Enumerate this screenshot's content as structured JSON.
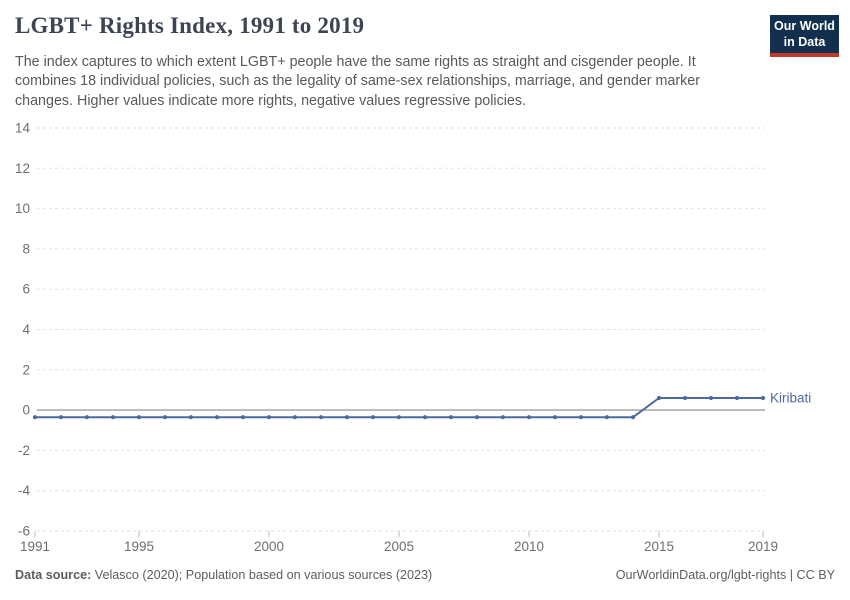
{
  "header": {
    "title": "LGBT+ Rights Index, 1991 to 2019",
    "subtitle": "The index captures to which extent LGBT+ people have the same rights as straight and cisgender people. It combines 18 individual policies, such as the legality of same-sex relationships, marriage, and gender marker changes. Higher values indicate more rights, negative values regressive policies.",
    "logo": {
      "line1": "Our World",
      "line2": "in Data",
      "bg_color": "#12304e",
      "accent_color": "#c0392b"
    }
  },
  "chart_data": {
    "type": "line",
    "title": "LGBT+ Rights Index, 1991 to 2019",
    "xlabel": "",
    "ylabel": "",
    "xlim": [
      1991,
      2019
    ],
    "ylim": [
      -6,
      14
    ],
    "yticks": [
      14,
      12,
      10,
      8,
      6,
      4,
      2,
      0,
      -2,
      -4,
      -6
    ],
    "xticks": [
      1991,
      1995,
      2000,
      2005,
      2010,
      2015,
      2019
    ],
    "grid": "horizontal dashed, solid line at 0",
    "legend_position": "end-of-line label",
    "colors": {
      "series_blue": "#4c6a9e",
      "gridline": "#e2e2e2",
      "zero_line": "#adadad",
      "tick_label": "#6e6e6e"
    },
    "series": [
      {
        "name": "Kiribati",
        "color": "#4c6a9e",
        "x": [
          1991,
          1992,
          1993,
          1994,
          1995,
          1996,
          1997,
          1998,
          1999,
          2000,
          2001,
          2002,
          2003,
          2004,
          2005,
          2006,
          2007,
          2008,
          2009,
          2010,
          2011,
          2012,
          2013,
          2014,
          2015,
          2016,
          2017,
          2018,
          2019
        ],
        "values": [
          -0.35,
          -0.35,
          -0.35,
          -0.35,
          -0.35,
          -0.35,
          -0.35,
          -0.35,
          -0.35,
          -0.35,
          -0.35,
          -0.35,
          -0.35,
          -0.35,
          -0.35,
          -0.35,
          -0.35,
          -0.35,
          -0.35,
          -0.35,
          -0.35,
          -0.35,
          -0.35,
          -0.35,
          0.6,
          0.6,
          0.6,
          0.6,
          0.6
        ]
      }
    ]
  },
  "footer": {
    "datasource_label": "Data source:",
    "datasource_text": " Velasco (2020); Population based on various sources (2023)",
    "attribution": "OurWorldinData.org/lgbt-rights | CC BY"
  }
}
